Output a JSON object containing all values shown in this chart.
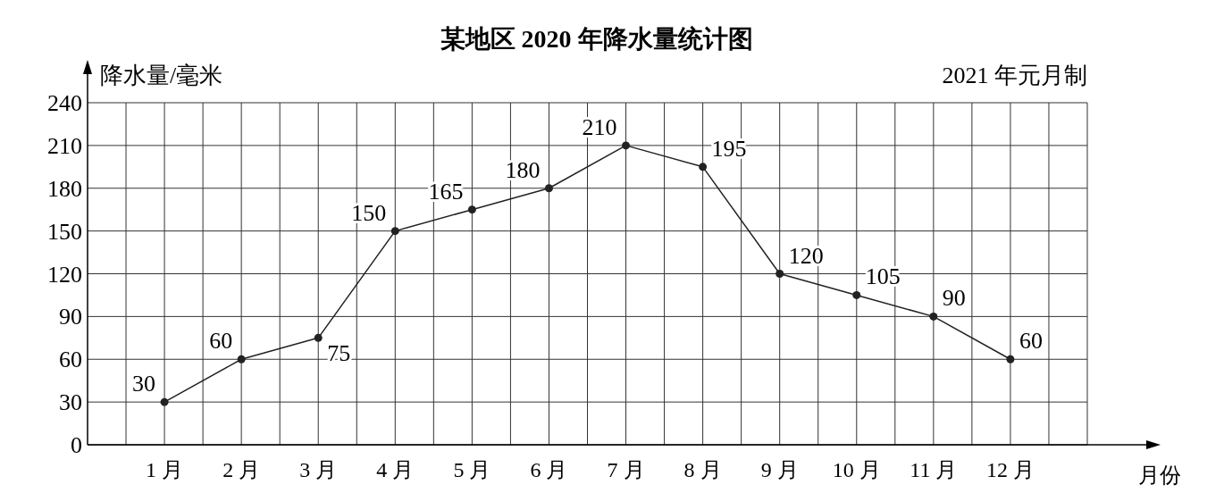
{
  "chart_data": {
    "type": "line",
    "title": "某地区 2020 年降水量统计图",
    "ylabel": "降水量/毫米",
    "xlabel": "月份",
    "annotations": [
      "2021 年元月制"
    ],
    "categories": [
      "1 月",
      "2 月",
      "3 月",
      "4 月",
      "5 月",
      "6 月",
      "7 月",
      "8 月",
      "9 月",
      "10 月",
      "11 月",
      "12 月"
    ],
    "series": [
      {
        "color": "#222222",
        "values": [
          30,
          60,
          75,
          150,
          165,
          180,
          210,
          195,
          120,
          105,
          90,
          60
        ]
      }
    ],
    "ylim": [
      0,
      240
    ],
    "yticks": [
      0,
      30,
      60,
      90,
      120,
      150,
      180,
      210,
      240
    ],
    "grid": true,
    "data_labels": true,
    "marker": "circle",
    "line_style": "solid"
  }
}
